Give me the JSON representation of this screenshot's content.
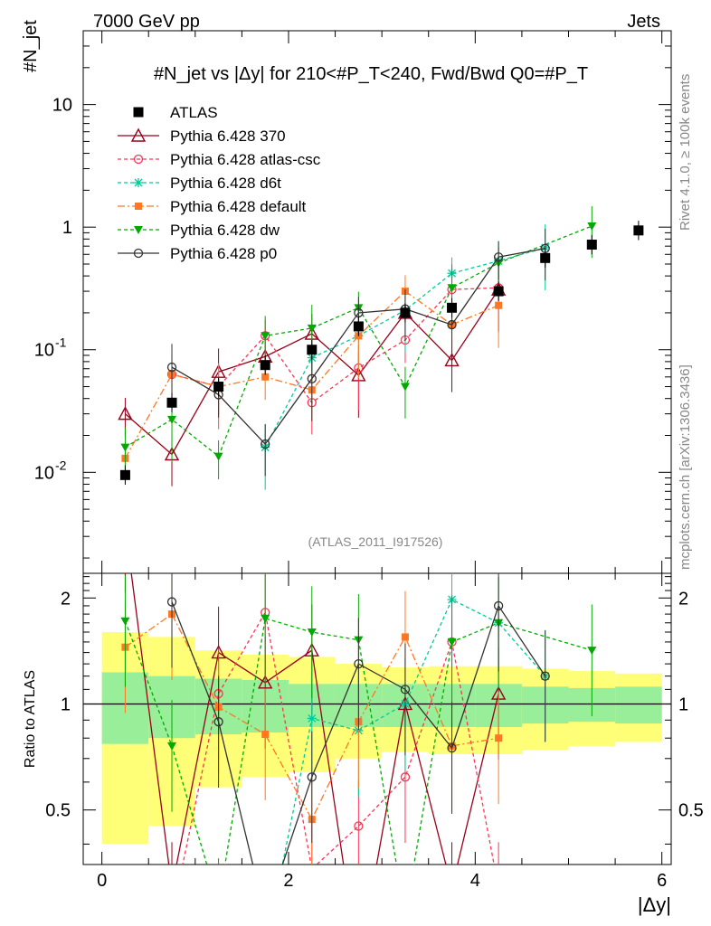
{
  "header": {
    "energy": "7000 GeV pp",
    "category": "Jets",
    "rivet": "Rivet 4.1.0, ≥ 100k events",
    "mcplots": "mcplots.cern.ch [arXiv:1306.3436]",
    "analysis": "(ATLAS_2011_I917526)"
  },
  "chart_data": {
    "type": "line",
    "title": "#N_jet vs |Δy| for 210<#P_T<240, Fwd/Bwd Q0=#P_T",
    "ylabel": "#N_jet",
    "xlabel": "|Δy|",
    "ratio_ylabel": "Ratio to ATLAS",
    "xlim": [
      -0.2,
      6.1
    ],
    "ylim": [
      0.0015,
      40
    ],
    "yscale": "log",
    "ratio_ylim": [
      0.35,
      2.35
    ],
    "x_ticks": [
      "0",
      "2",
      "4",
      "6"
    ],
    "y_ticks": [
      "10",
      "1",
      "10^-1",
      "10^-2"
    ],
    "ratio_ticks": [
      "0.5",
      "1",
      "2"
    ],
    "data": {
      "name": "ATLAS",
      "x": [
        0.25,
        0.75,
        1.25,
        1.75,
        2.25,
        2.75,
        3.25,
        3.75,
        4.25,
        4.75,
        5.25,
        5.75
      ],
      "y": [
        0.0095,
        0.037,
        0.05,
        0.075,
        0.1,
        0.155,
        0.2,
        0.22,
        0.3,
        0.56,
        0.72,
        0.94
      ],
      "band_inner": [
        0.23,
        0.2,
        0.18,
        0.17,
        0.14,
        0.14,
        0.14,
        0.14,
        0.14,
        0.12,
        0.11,
        0.12
      ],
      "band_outer": [
        0.6,
        0.55,
        0.42,
        0.38,
        0.36,
        0.3,
        0.27,
        0.28,
        0.28,
        0.26,
        0.24,
        0.22
      ]
    },
    "series": [
      {
        "name": "Pythia 6.428 370",
        "color": "#99001a",
        "dash": "",
        "marker": "triangle-open",
        "x": [
          0.25,
          0.75,
          1.25,
          1.75,
          2.25,
          2.75,
          3.25,
          3.75,
          4.25
        ],
        "y": [
          0.03,
          0.014,
          0.066,
          0.088,
          0.135,
          0.062,
          0.2,
          0.082,
          0.31
        ],
        "ratio": [
          3.2,
          0.3,
          1.4,
          1.15,
          1.42,
          0.18,
          1.0,
          0.3,
          1.07
        ]
      },
      {
        "name": "Pythia 6.428 atlas-csc",
        "color": "#ff3355",
        "dash": "4,3",
        "marker": "circle-open",
        "x": [
          0.75,
          1.25,
          1.75,
          2.25,
          2.75,
          3.25,
          3.75,
          4.25
        ],
        "y": [
          0.063,
          0.05,
          0.13,
          0.037,
          0.071,
          0.12,
          0.31,
          0.32
        ],
        "ratio": [
          0.25,
          1.07,
          1.82,
          0.34,
          0.45,
          0.62,
          1.5,
          0.3
        ]
      },
      {
        "name": "Pythia 6.428 d6t",
        "color": "#00cc99",
        "dash": "4,3",
        "marker": "star",
        "x": [
          1.75,
          2.25,
          2.75,
          3.25,
          3.75,
          4.25,
          4.75
        ],
        "y": [
          0.016,
          0.086,
          0.13,
          0.21,
          0.42,
          0.53,
          0.68
        ],
        "ratio": [
          0.2,
          0.91,
          0.84,
          1.0,
          1.98,
          1.7,
          1.2
        ]
      },
      {
        "name": "Pythia 6.428 default",
        "color": "#ff7722",
        "dash": "8,3,2,3",
        "marker": "square",
        "x": [
          0.25,
          0.75,
          1.25,
          1.75,
          2.25,
          2.75,
          3.25,
          3.75,
          4.25
        ],
        "y": [
          0.013,
          0.063,
          0.05,
          0.06,
          0.047,
          0.13,
          0.3,
          0.16,
          0.23
        ],
        "ratio": [
          1.45,
          1.8,
          0.98,
          0.82,
          0.47,
          0.89,
          1.55,
          0.76,
          0.8
        ]
      },
      {
        "name": "Pythia 6.428 dw",
        "color": "#00aa00",
        "dash": "4,3",
        "marker": "triangle-down",
        "x": [
          0.25,
          0.75,
          1.25,
          1.75,
          2.25,
          2.75,
          3.25,
          3.75,
          4.25,
          5.25
        ],
        "y": [
          0.016,
          0.027,
          0.0135,
          0.13,
          0.15,
          0.22,
          0.05,
          0.32,
          0.51,
          1.02
        ],
        "ratio": [
          1.72,
          0.76,
          0.27,
          1.75,
          1.6,
          1.52,
          0.25,
          1.5,
          1.7,
          1.42
        ]
      },
      {
        "name": "Pythia 6.428 p0",
        "color": "#333333",
        "dash": "",
        "marker": "circle-open",
        "x": [
          0.75,
          1.25,
          1.75,
          2.25,
          2.75,
          3.25,
          3.75,
          4.25,
          4.75
        ],
        "y": [
          0.072,
          0.043,
          0.017,
          0.058,
          0.2,
          0.215,
          0.16,
          0.57,
          0.67
        ],
        "ratio": [
          1.95,
          0.89,
          0.25,
          0.62,
          1.3,
          1.1,
          0.75,
          1.9,
          1.2
        ]
      }
    ]
  }
}
